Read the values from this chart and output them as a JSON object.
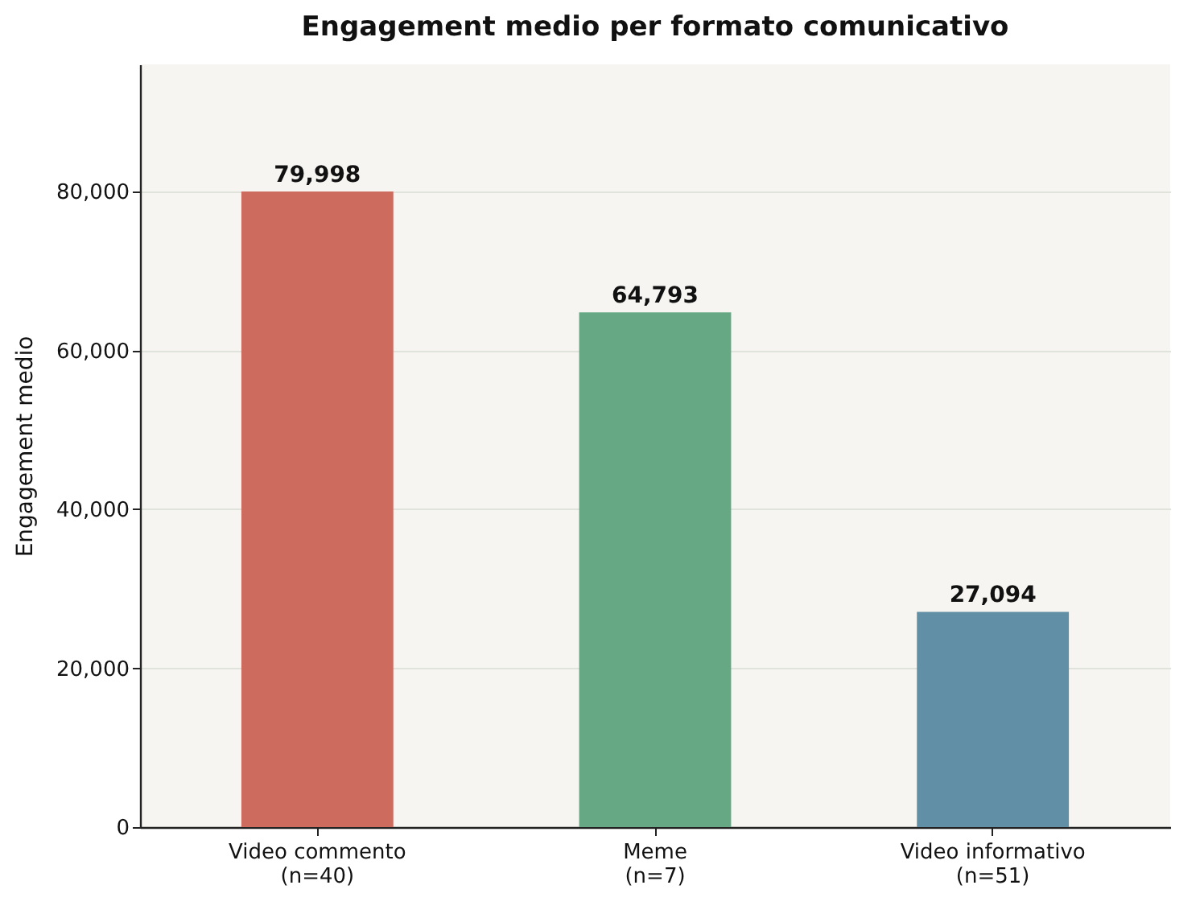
{
  "chart_data": {
    "type": "bar",
    "title": "Engagement medio per formato comunicativo",
    "ylabel": "Engagement medio",
    "categories": [
      "Video commento\n(n=40)",
      "Meme\n(n=7)",
      "Video informativo\n(n=51)"
    ],
    "values": [
      79998,
      64793,
      27094
    ],
    "colors": [
      "#cd6b5f",
      "#66a884",
      "#6190a6"
    ],
    "value_labels": [
      "79,998",
      "64,793",
      "27,094"
    ],
    "ylim": [
      0,
      96000
    ],
    "yticks": [
      0,
      {
        "value": 20000,
        "label": "20,000"
      },
      {
        "value": 40000,
        "label": "40,000"
      },
      {
        "value": 60000,
        "label": "60,000"
      },
      {
        "value": 80000,
        "label": "80,000"
      }
    ],
    "grid": "y"
  }
}
